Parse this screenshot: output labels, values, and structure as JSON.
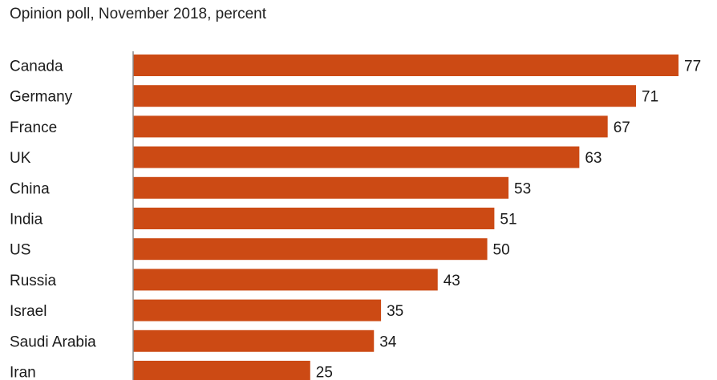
{
  "subtitle": "Opinion poll, November 2018, percent",
  "colors": {
    "bar": "#cc4a14",
    "axis": "#888888"
  },
  "chart_data": {
    "type": "bar",
    "orientation": "horizontal",
    "title": "",
    "subtitle": "Opinion poll, November 2018, percent",
    "xlabel": "",
    "ylabel": "",
    "xlim": [
      0,
      77
    ],
    "grid": false,
    "categories": [
      "Canada",
      "Germany",
      "France",
      "UK",
      "China",
      "India",
      "US",
      "Russia",
      "Israel",
      "Saudi Arabia",
      "Iran"
    ],
    "values": [
      77,
      71,
      67,
      63,
      53,
      51,
      50,
      43,
      35,
      34,
      25
    ],
    "data_labels": [
      "77",
      "71",
      "67",
      "63",
      "53",
      "51",
      "50",
      "43",
      "35",
      "34",
      "25"
    ]
  }
}
